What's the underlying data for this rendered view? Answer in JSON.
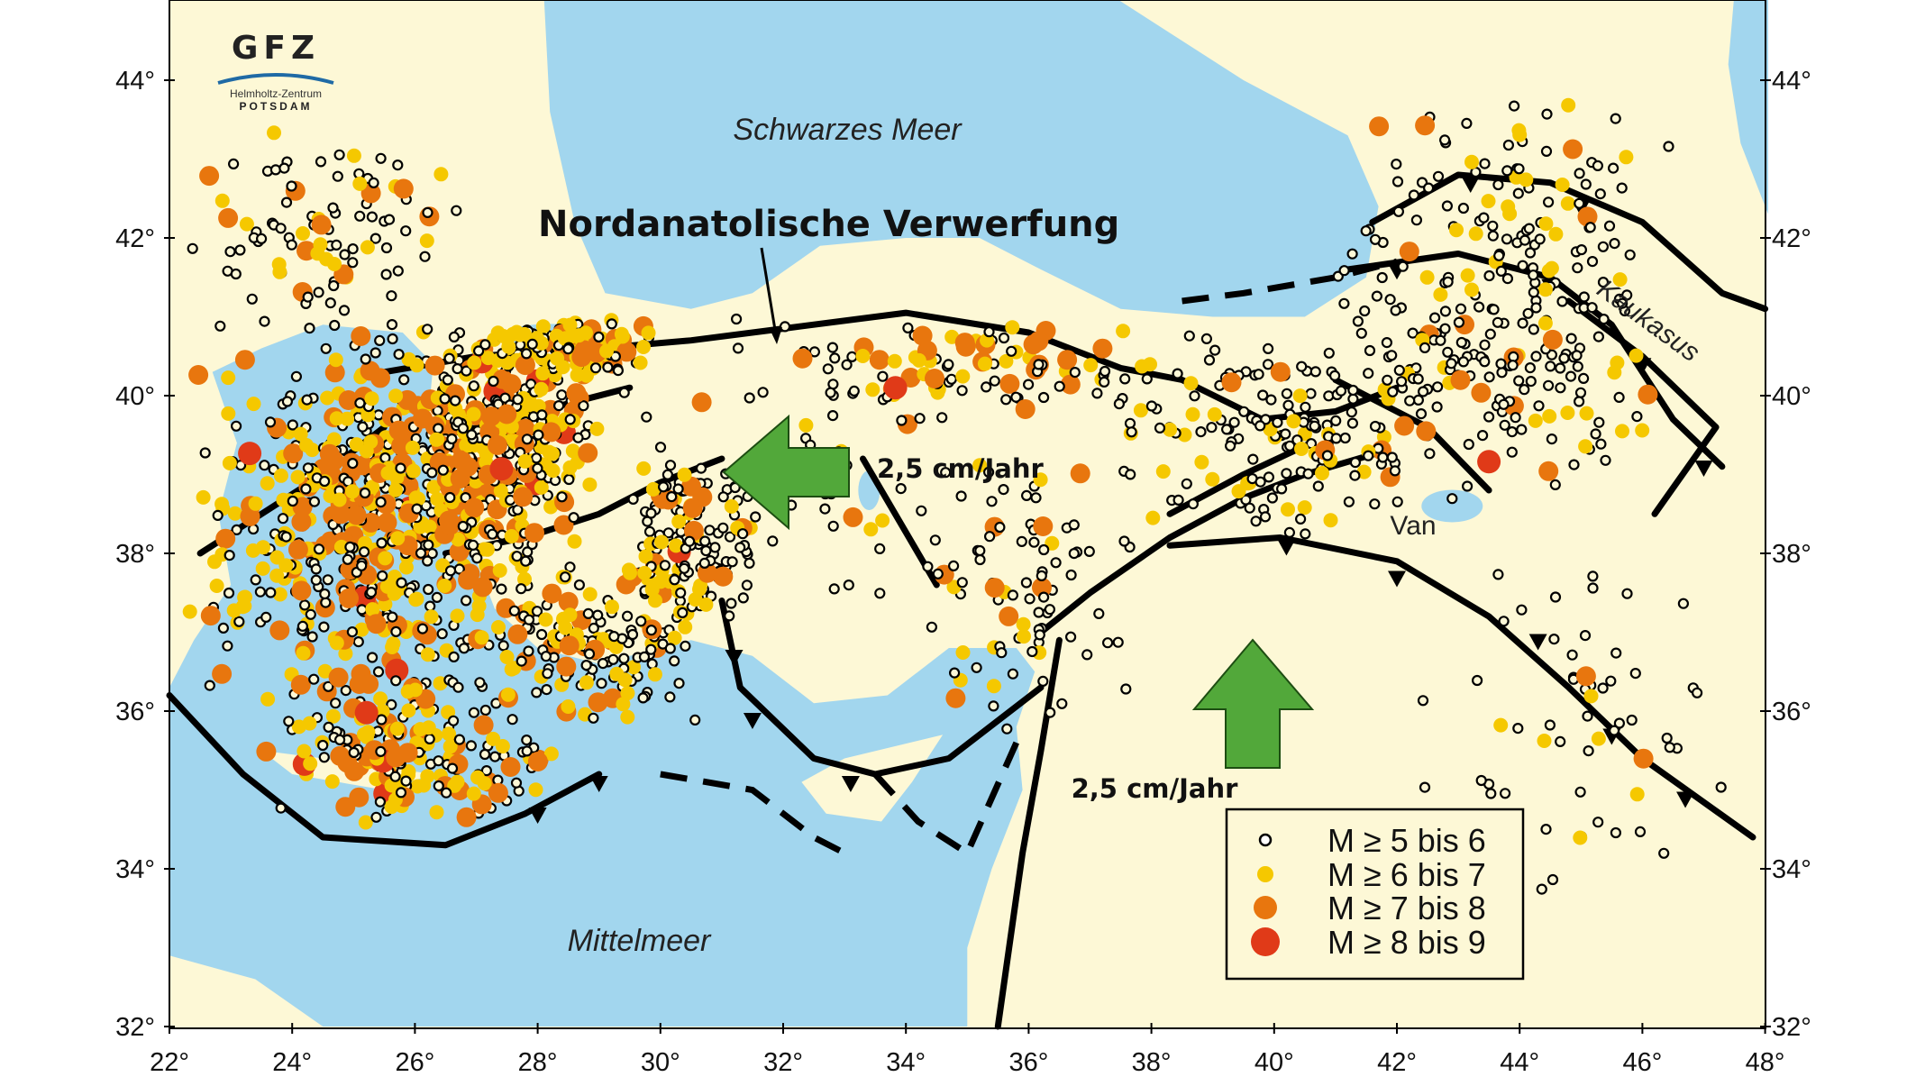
{
  "map": {
    "labels": {
      "sea_north": "Schwarzes Meer",
      "sea_south": "Mittelmeer",
      "fault": "Nordanatolische Verwerfung",
      "rate_west": "2,5 cm/Jahr",
      "rate_north": "2,5 cm/Jahr",
      "mountains": "Kaukasus",
      "lake": "Van"
    },
    "logo": {
      "mark": "GFZ",
      "line1": "Helmholtz-Zentrum",
      "line2": "POTSDAM"
    },
    "lat_ticks": [
      "44°",
      "42°",
      "40°",
      "38°",
      "36°",
      "34°",
      "32°"
    ],
    "lon_ticks": [
      "22°",
      "24°",
      "26°",
      "28°",
      "30°",
      "32°",
      "34°",
      "36°",
      "38°",
      "40°",
      "42°",
      "44°",
      "46°",
      "48°"
    ],
    "extent": {
      "lon": [
        22,
        48
      ],
      "lat": [
        32,
        45
      ]
    },
    "legend": [
      {
        "label": "M ≥ 5 bis 6",
        "color": "#ffffff"
      },
      {
        "label": "M ≥ 6 bis 7",
        "color": "#f5c800"
      },
      {
        "label": "M ≥ 7 bis 8",
        "color": "#e8760e"
      },
      {
        "label": "M ≥ 8 bis 9",
        "color": "#e03a18"
      }
    ],
    "colors": {
      "land": "#fdf8d6",
      "sea": "#a2d6ee",
      "arrow": "#52a83a",
      "fault": "#000000"
    }
  }
}
